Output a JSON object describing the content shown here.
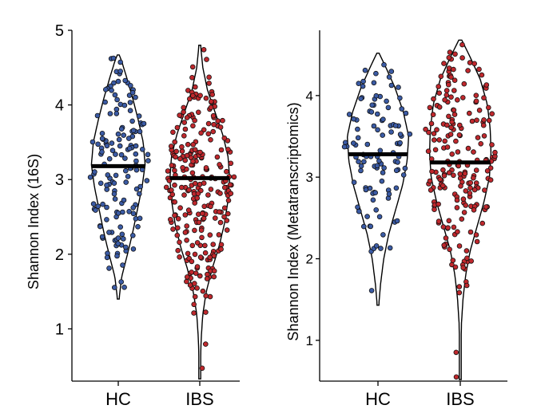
{
  "chart_data": [
    {
      "type": "violin",
      "ylabel": "Shannon Index (16S)",
      "xlabel": "",
      "categories": [
        "HC",
        "IBS"
      ],
      "ylim": [
        0.3,
        5.0
      ],
      "yticks": [
        1,
        2,
        3,
        4,
        5
      ],
      "series": [
        {
          "name": "HC",
          "color": "#3b5ba5",
          "median": 3.18,
          "n": 150,
          "min": 1.4,
          "max": 4.67,
          "density": [
            [
              1.4,
              0.02
            ],
            [
              1.7,
              0.09
            ],
            [
              2.0,
              0.24
            ],
            [
              2.3,
              0.38
            ],
            [
              2.6,
              0.5
            ],
            [
              2.9,
              0.62
            ],
            [
              3.2,
              0.7
            ],
            [
              3.5,
              0.65
            ],
            [
              3.8,
              0.52
            ],
            [
              4.1,
              0.37
            ],
            [
              4.4,
              0.2
            ],
            [
              4.6,
              0.08
            ],
            [
              4.67,
              0.02
            ]
          ]
        },
        {
          "name": "IBS",
          "color": "#c0282d",
          "median": 3.02,
          "n": 260,
          "min": 0.33,
          "max": 4.8,
          "density": [
            [
              0.33,
              0.01
            ],
            [
              0.6,
              0.02
            ],
            [
              0.9,
              0.04
            ],
            [
              1.2,
              0.08
            ],
            [
              1.5,
              0.17
            ],
            [
              1.8,
              0.32
            ],
            [
              2.1,
              0.5
            ],
            [
              2.4,
              0.64
            ],
            [
              2.7,
              0.73
            ],
            [
              3.0,
              0.78
            ],
            [
              3.3,
              0.74
            ],
            [
              3.6,
              0.6
            ],
            [
              3.9,
              0.4
            ],
            [
              4.2,
              0.2
            ],
            [
              4.5,
              0.08
            ],
            [
              4.8,
              0.02
            ]
          ]
        }
      ]
    },
    {
      "type": "violin",
      "ylabel": "Shannon Index (Metatranscriptomics)",
      "xlabel": "",
      "categories": [
        "HC",
        "IBS"
      ],
      "ylim": [
        0.5,
        4.8
      ],
      "yticks": [
        1,
        2,
        3,
        4
      ],
      "series": [
        {
          "name": "HC",
          "color": "#3b5ba5",
          "median": 3.28,
          "n": 110,
          "min": 1.43,
          "max": 4.52,
          "density": [
            [
              1.43,
              0.02
            ],
            [
              1.7,
              0.07
            ],
            [
              2.0,
              0.15
            ],
            [
              2.3,
              0.28
            ],
            [
              2.6,
              0.46
            ],
            [
              2.9,
              0.64
            ],
            [
              3.2,
              0.76
            ],
            [
              3.5,
              0.8
            ],
            [
              3.8,
              0.66
            ],
            [
              4.1,
              0.44
            ],
            [
              4.35,
              0.2
            ],
            [
              4.52,
              0.03
            ]
          ]
        },
        {
          "name": "IBS",
          "color": "#c0282d",
          "median": 3.18,
          "n": 210,
          "min": 0.52,
          "max": 4.68,
          "density": [
            [
              0.52,
              0.01
            ],
            [
              0.9,
              0.02
            ],
            [
              1.2,
              0.03
            ],
            [
              1.5,
              0.07
            ],
            [
              1.8,
              0.14
            ],
            [
              2.1,
              0.26
            ],
            [
              2.4,
              0.44
            ],
            [
              2.7,
              0.62
            ],
            [
              3.0,
              0.76
            ],
            [
              3.3,
              0.8
            ],
            [
              3.6,
              0.78
            ],
            [
              3.9,
              0.7
            ],
            [
              4.2,
              0.52
            ],
            [
              4.45,
              0.28
            ],
            [
              4.68,
              0.04
            ]
          ]
        }
      ]
    }
  ]
}
